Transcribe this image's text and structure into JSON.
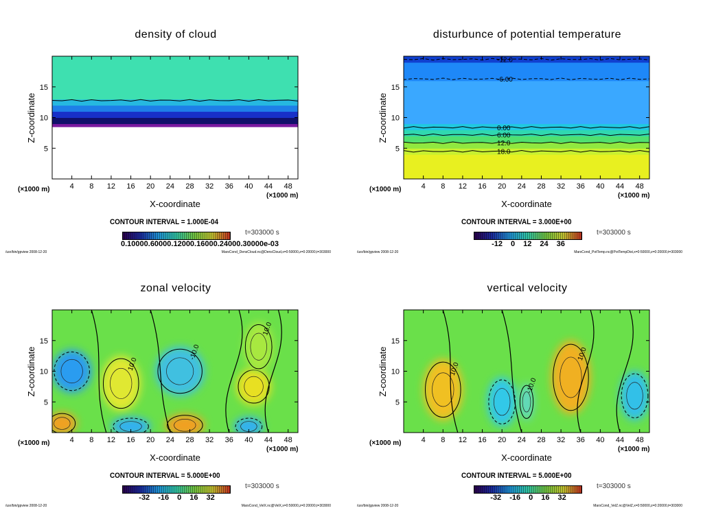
{
  "chart_data": [
    {
      "type": "heatmap",
      "title": "density of cloud",
      "xlabel": "X-coordinate",
      "ylabel": "Z-coordinate",
      "xunit": "(×1000 m)",
      "xlim": [
        0,
        50
      ],
      "ylim": [
        0,
        20
      ],
      "xticks": [
        "4",
        "8",
        "12",
        "16",
        "20",
        "24",
        "28",
        "32",
        "36",
        "40",
        "44",
        "48"
      ],
      "yticks": [
        "5",
        "10",
        "15"
      ],
      "contour_interval": "CONTOUR INTERVAL = 1.000E-04",
      "time": "t=303000 s",
      "colorbar_ticks": [
        "0.10000.60000.12000.16000.24000.30000e-03"
      ],
      "colorbar": [
        "#2a004a",
        "#1a2a9a",
        "#1f8fd0",
        "#30c0a0",
        "#70c040",
        "#c0c030",
        "#c03020"
      ],
      "layers": [
        {
          "z": [
            0,
            8.5
          ],
          "color": "#ffffff"
        },
        {
          "z": [
            8.5,
            9
          ],
          "color": "#7a1aa0"
        },
        {
          "z": [
            9,
            10
          ],
          "color": "#10106a"
        },
        {
          "z": [
            10,
            11
          ],
          "color": "#1830c8"
        },
        {
          "z": [
            11,
            12
          ],
          "color": "#1e7fe8"
        },
        {
          "z": [
            12,
            13
          ],
          "color": "#26b8e0"
        },
        {
          "z": [
            13,
            20
          ],
          "color": "#3ee0b0"
        }
      ],
      "contours": [
        {
          "z": 12.8,
          "label": ""
        }
      ],
      "features": [],
      "footer_left": "/usr/bin/gpview  2008-12-20",
      "footer_right": "MarsCond_DensCloud.nc@DensCloud,x=0:50000,z=0:20000,t=303000"
    },
    {
      "type": "heatmap",
      "title": "disturbunce of potential temperature",
      "xlabel": "X-coordinate",
      "ylabel": "Z-coordinate",
      "xunit": "(×1000 m)",
      "xlim": [
        0,
        50
      ],
      "ylim": [
        0,
        20
      ],
      "xticks": [
        "4",
        "8",
        "12",
        "16",
        "20",
        "24",
        "28",
        "32",
        "36",
        "40",
        "44",
        "48"
      ],
      "yticks": [
        "5",
        "10",
        "15"
      ],
      "contour_interval": "CONTOUR INTERVAL = 3.000E+00",
      "time": "t=303000 s",
      "colorbar_ticks": [
        "-12",
        "0",
        "12",
        "24",
        "36"
      ],
      "colorbar": [
        "#2a004a",
        "#1a2a9a",
        "#1f8fd0",
        "#30c0a0",
        "#70c040",
        "#c0c030",
        "#c03020"
      ],
      "layers": [
        {
          "z": [
            0,
            4
          ],
          "color": "#e8f020"
        },
        {
          "z": [
            4,
            5
          ],
          "color": "#c8f030"
        },
        {
          "z": [
            5,
            6
          ],
          "color": "#90e840"
        },
        {
          "z": [
            6,
            7
          ],
          "color": "#50e070"
        },
        {
          "z": [
            7,
            8
          ],
          "color": "#30d8b0"
        },
        {
          "z": [
            8,
            9
          ],
          "color": "#20c8e0"
        },
        {
          "z": [
            9,
            16
          ],
          "color": "#3aa8ff"
        },
        {
          "z": [
            16,
            19
          ],
          "color": "#1e88f8"
        },
        {
          "z": [
            19,
            20
          ],
          "color": "#1040d0"
        }
      ],
      "contours": [
        {
          "z": 19.5,
          "label": "-12.0",
          "dashed": true
        },
        {
          "z": 16.3,
          "label": "-6.00",
          "dashed": true
        },
        {
          "z": 8.4,
          "label": "0.00"
        },
        {
          "z": 7.2,
          "label": "6.00"
        },
        {
          "z": 5.9,
          "label": "12.0"
        },
        {
          "z": 4.5,
          "label": "18.0"
        }
      ],
      "features": [],
      "footer_left": "/usr/bin/gpview  2008-12-20",
      "footer_right": "MarsCond_PotTemp.nc@PotTempDist,x=0:50000,z=0:20000,t=303000"
    },
    {
      "type": "heatmap",
      "title": "zonal velocity",
      "xlabel": "X-coordinate",
      "ylabel": "Z-coordinate",
      "xunit": "(×1000 m)",
      "xlim": [
        0,
        50
      ],
      "ylim": [
        0,
        20
      ],
      "xticks": [
        "4",
        "8",
        "12",
        "16",
        "20",
        "24",
        "28",
        "32",
        "36",
        "40",
        "44",
        "48"
      ],
      "yticks": [
        "5",
        "10",
        "15"
      ],
      "contour_interval": "CONTOUR INTERVAL = 5.000E+00",
      "time": "t=303000 s",
      "colorbar_ticks": [
        "-32",
        "-16",
        "0",
        "16",
        "32"
      ],
      "colorbar": [
        "#2a004a",
        "#1a2a9a",
        "#1f8fd0",
        "#30c0a0",
        "#70c040",
        "#c0c030",
        "#c03020"
      ],
      "layers": [
        {
          "z": [
            0,
            20
          ],
          "color": "#6ae04a"
        }
      ],
      "contours": [],
      "features": [
        {
          "x": 4,
          "z": 10,
          "rx": 4,
          "rz": 3.5,
          "color": "#2a9cf0",
          "label": ""
        },
        {
          "x": 26,
          "z": 10,
          "rx": 5,
          "rz": 4,
          "color": "#40c0e0",
          "label": "-10.0"
        },
        {
          "x": 14,
          "z": 8,
          "rx": 4,
          "rz": 4.5,
          "color": "#e0e830",
          "label": "10.0"
        },
        {
          "x": 41,
          "z": 7.5,
          "rx": 3.5,
          "rz": 3,
          "color": "#e8e020",
          "label": ""
        },
        {
          "x": 42,
          "z": 14,
          "rx": 3,
          "rz": 4,
          "color": "#a8e840",
          "label": "10.0"
        },
        {
          "x": 2,
          "z": 1.5,
          "rx": 3,
          "rz": 1.8,
          "color": "#f0a020",
          "label": ""
        },
        {
          "x": 27,
          "z": 1.2,
          "rx": 4,
          "rz": 1.8,
          "color": "#f0a020",
          "label": ""
        },
        {
          "x": 16,
          "z": 1,
          "rx": 4,
          "rz": 1.5,
          "color": "#30b0f0",
          "label": ""
        },
        {
          "x": 40,
          "z": 1,
          "rx": 3,
          "rz": 1.5,
          "color": "#30b0f0",
          "label": ""
        }
      ],
      "footer_left": "/usr/bin/gpview  2008-12-20",
      "footer_right": "MarsCond_VelX.nc@VelX,x=0:50000,z=0:20000,t=303000"
    },
    {
      "type": "heatmap",
      "title": "vertical velocity",
      "xlabel": "X-coordinate",
      "ylabel": "Z-coordinate",
      "xunit": "(×1000 m)",
      "xlim": [
        0,
        50
      ],
      "ylim": [
        0,
        20
      ],
      "xticks": [
        "4",
        "8",
        "12",
        "16",
        "20",
        "24",
        "28",
        "32",
        "36",
        "40",
        "44",
        "48"
      ],
      "yticks": [
        "5",
        "10",
        "15"
      ],
      "contour_interval": "CONTOUR INTERVAL = 5.000E+00",
      "time": "t=303000 s",
      "colorbar_ticks": [
        "-32",
        "-16",
        "0",
        "16",
        "32"
      ],
      "colorbar": [
        "#2a004a",
        "#1a2a9a",
        "#1f8fd0",
        "#30c0a0",
        "#70c040",
        "#c0c030",
        "#c03020"
      ],
      "layers": [
        {
          "z": [
            0,
            20
          ],
          "color": "#6ae04a"
        }
      ],
      "contours": [],
      "features": [
        {
          "x": 8,
          "z": 7,
          "rx": 4,
          "rz": 5,
          "color": "#f0c020",
          "label": "10.0"
        },
        {
          "x": 34,
          "z": 9,
          "rx": 4,
          "rz": 6,
          "color": "#f0b020",
          "label": "10.0"
        },
        {
          "x": 20,
          "z": 5,
          "rx": 3,
          "rz": 4,
          "color": "#30c8e8",
          "label": ""
        },
        {
          "x": 25,
          "z": 5,
          "rx": 1.5,
          "rz": 3,
          "color": "#60d8c0",
          "label": "-10.0"
        },
        {
          "x": 47,
          "z": 6,
          "rx": 3,
          "rz": 4,
          "color": "#30c0e8",
          "label": ""
        }
      ],
      "footer_left": "/usr/bin/gpview  2008-12-20",
      "footer_right": "MarsCond_VelZ.nc@VelZ,x=0:50000,z=0:20000,t=303000"
    }
  ]
}
